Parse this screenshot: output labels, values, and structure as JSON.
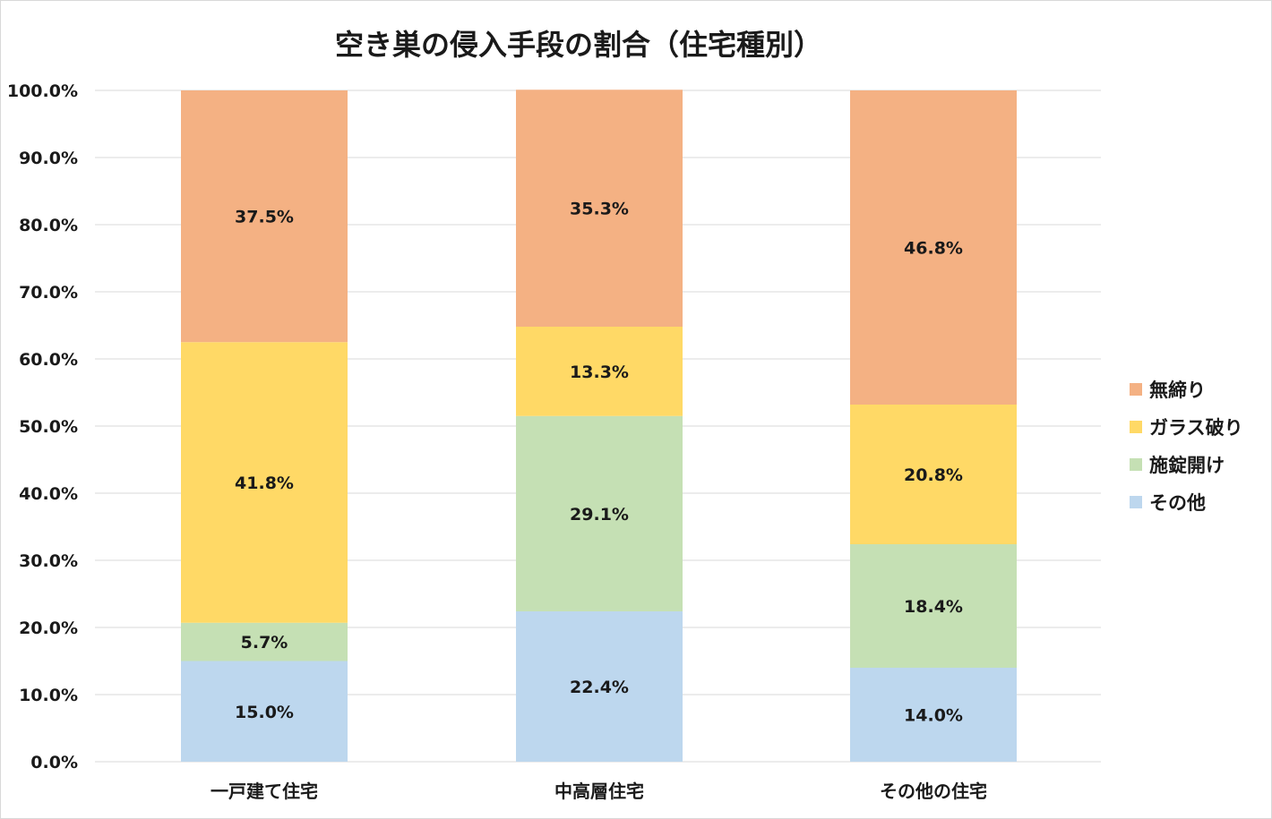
{
  "chart_data": {
    "type": "bar",
    "stacked": true,
    "title": "空き巣の侵入手段の割合（住宅種別）",
    "categories": [
      "一戸建て住宅",
      "中高層住宅",
      "その他の住宅"
    ],
    "ylim": [
      0,
      100
    ],
    "ytick_values": [
      0,
      10,
      20,
      30,
      40,
      50,
      60,
      70,
      80,
      90,
      100
    ],
    "ytick_labels": [
      "0.0%",
      "10.0%",
      "20.0%",
      "30.0%",
      "40.0%",
      "50.0%",
      "60.0%",
      "70.0%",
      "80.0%",
      "90.0%",
      "100.0%"
    ],
    "grid": true,
    "legend_position": "right",
    "series": [
      {
        "name": "その他",
        "color": "#bdd7ee",
        "values": [
          15.0,
          22.4,
          14.0
        ],
        "labels": [
          "15.0%",
          "22.4%",
          "14.0%"
        ]
      },
      {
        "name": "施錠開け",
        "color": "#c5e0b4",
        "values": [
          5.7,
          29.1,
          18.4
        ],
        "labels": [
          "5.7%",
          "29.1%",
          "18.4%"
        ]
      },
      {
        "name": "ガラス破り",
        "color": "#ffd966",
        "values": [
          41.8,
          13.3,
          20.8
        ],
        "labels": [
          "41.8%",
          "13.3%",
          "20.8%"
        ]
      },
      {
        "name": "無締り",
        "color": "#f4b183",
        "values": [
          37.5,
          35.3,
          46.8
        ],
        "labels": [
          "37.5%",
          "35.3%",
          "46.8%"
        ]
      }
    ],
    "legend_order": [
      "無締り",
      "ガラス破り",
      "施錠開け",
      "その他"
    ]
  }
}
